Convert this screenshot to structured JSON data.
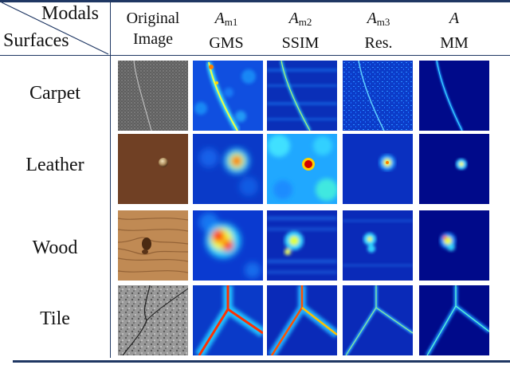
{
  "header": {
    "modals_label": "Modals",
    "surfaces_label": "Surfaces",
    "columns": [
      {
        "line1": "Original",
        "line2": "Image"
      },
      {
        "symbol": "A",
        "subscript": "m1",
        "line2": "GMS"
      },
      {
        "symbol": "A",
        "subscript": "m2",
        "line2": "SSIM"
      },
      {
        "symbol": "A",
        "subscript": "m3",
        "line2": "Res."
      },
      {
        "symbol": "A",
        "subscript": "",
        "line2": "MM"
      }
    ]
  },
  "rows": [
    {
      "label": "Carpet"
    },
    {
      "label": "Leather"
    },
    {
      "label": "Wood"
    },
    {
      "label": "Tile"
    }
  ],
  "colors": {
    "rule": "#1f3763",
    "heat_low": "#00008f",
    "heat_mid": "#00a0ff",
    "heat_high": "#ff2000"
  }
}
